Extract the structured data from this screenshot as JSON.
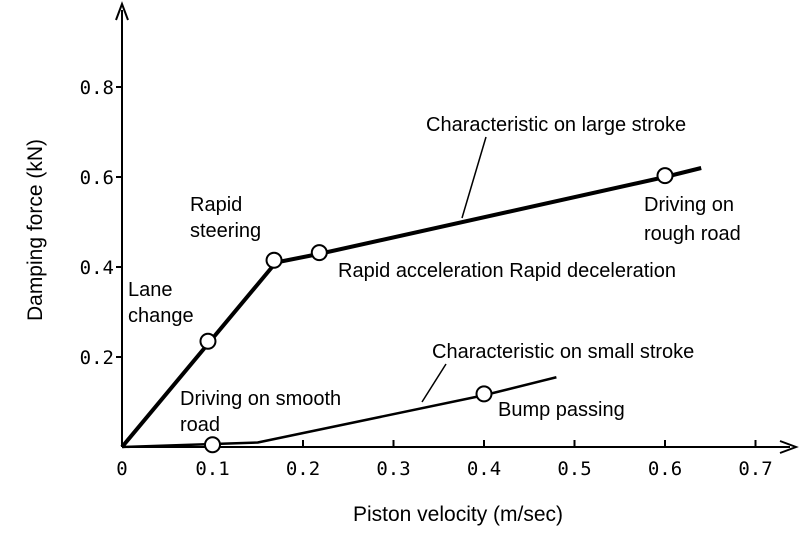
{
  "chart_data": {
    "type": "line",
    "xlabel": "Piston velocity (m/sec)",
    "ylabel": "Damping force (kN)",
    "xlim": [
      0,
      0.75
    ],
    "ylim": [
      0,
      0.9
    ],
    "x_ticks": [
      "0",
      "0.1",
      "0.2",
      "0.3",
      "0.4",
      "0.5",
      "0.6",
      "0.7"
    ],
    "y_ticks": [
      "0.2",
      "0.4",
      "0.6",
      "0.8"
    ],
    "grid": false,
    "series": [
      {
        "name": "Characteristic on large stroke",
        "points": [
          [
            0,
            0
          ],
          [
            0.17,
            0.41
          ],
          [
            0.22,
            0.43
          ],
          [
            0.6,
            0.6
          ],
          [
            0.64,
            0.62
          ]
        ]
      },
      {
        "name": "Characteristic on small stroke",
        "points": [
          [
            0,
            0
          ],
          [
            0.15,
            0.01
          ],
          [
            0.4,
            0.115
          ],
          [
            0.48,
            0.155
          ]
        ]
      }
    ],
    "markers": [
      {
        "x": 0.095,
        "y": 0.235,
        "series": 0
      },
      {
        "x": 0.168,
        "y": 0.415,
        "series": 0
      },
      {
        "x": 0.218,
        "y": 0.432,
        "series": 0
      },
      {
        "x": 0.6,
        "y": 0.603,
        "series": 0
      },
      {
        "x": 0.1,
        "y": 0.005,
        "series": 1
      },
      {
        "x": 0.4,
        "y": 0.118,
        "series": 1
      }
    ],
    "annotations": {
      "large_stroke": "Characteristic on large stroke",
      "small_stroke": "Characteristic on small stroke",
      "lane_change_1": "Lane",
      "lane_change_2": "change",
      "rapid_steering_1": "Rapid",
      "rapid_steering_2": "steering",
      "rapid_accel_decel": "Rapid acceleration Rapid deceleration",
      "rough_road_1": "Driving on",
      "rough_road_2": "rough road",
      "smooth_road_1": "Driving on smooth",
      "smooth_road_2": "road",
      "bump_passing": "Bump passing"
    }
  }
}
